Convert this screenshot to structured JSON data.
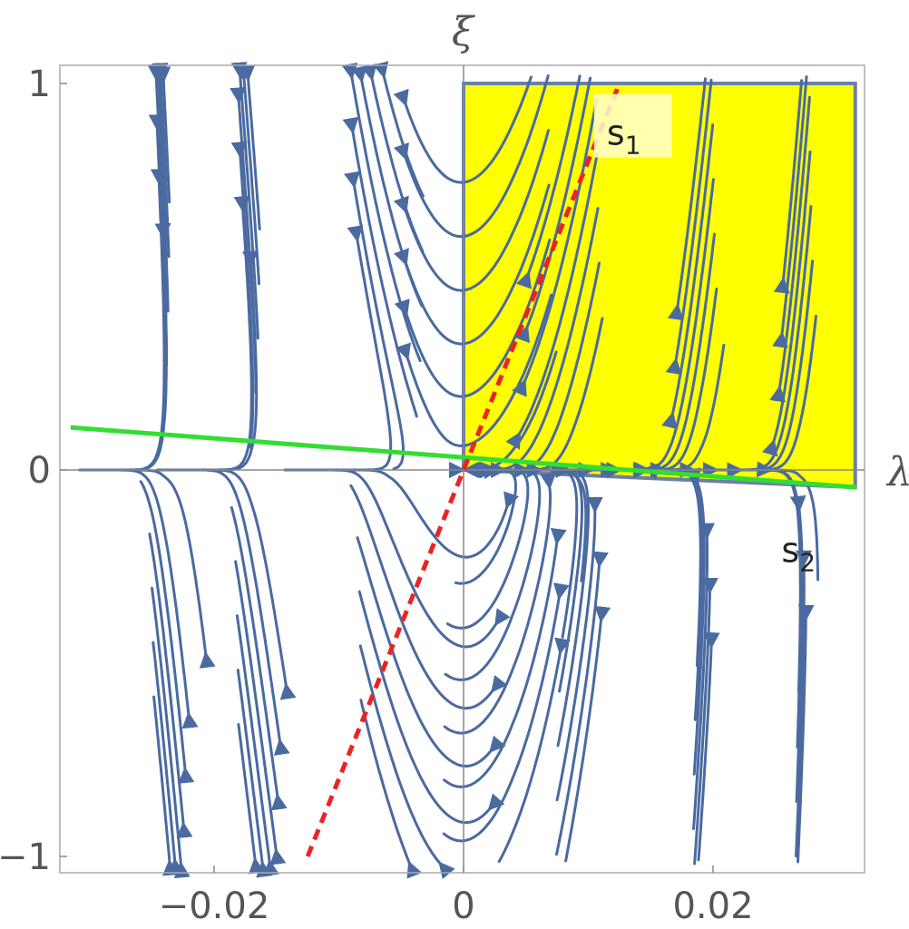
{
  "chart_data": {
    "type": "streamplot",
    "xlabel": "λ",
    "ylabel": "ξ",
    "xlim": [
      -0.032,
      0.032
    ],
    "ylim": [
      -1.05,
      1.05
    ],
    "x_ticks": [
      {
        "value": -0.02,
        "label": "−0.02"
      },
      {
        "value": 0,
        "label": "0"
      },
      {
        "value": 0.02,
        "label": "0.02"
      }
    ],
    "y_ticks": [
      {
        "value": -1,
        "label": "−1"
      },
      {
        "value": 0,
        "label": "0"
      },
      {
        "value": 1,
        "label": "1"
      }
    ],
    "region": {
      "fill": "#ffff00",
      "border": "#6c7fa8",
      "polygon": [
        [
          0,
          0
        ],
        [
          0,
          1
        ],
        [
          0.0314,
          1
        ],
        [
          0.0314,
          -0.045
        ]
      ]
    },
    "lines": [
      {
        "style": "solid",
        "color": "#33dd33",
        "points": [
          [
            -0.0315,
            0.11
          ],
          [
            0.0315,
            -0.045
          ]
        ]
      },
      {
        "style": "dashed",
        "color": "#ee2222",
        "points": [
          [
            -0.0125,
            -1.0
          ],
          [
            0.0125,
            1.0
          ]
        ]
      }
    ],
    "points": [
      {
        "label": "s",
        "subscript": "1",
        "x": 0.0125,
        "y": 0.86
      },
      {
        "label": "s",
        "subscript": "2",
        "x": 0.0265,
        "y": -0.22
      }
    ],
    "stream_color": "#4a6aa0"
  }
}
